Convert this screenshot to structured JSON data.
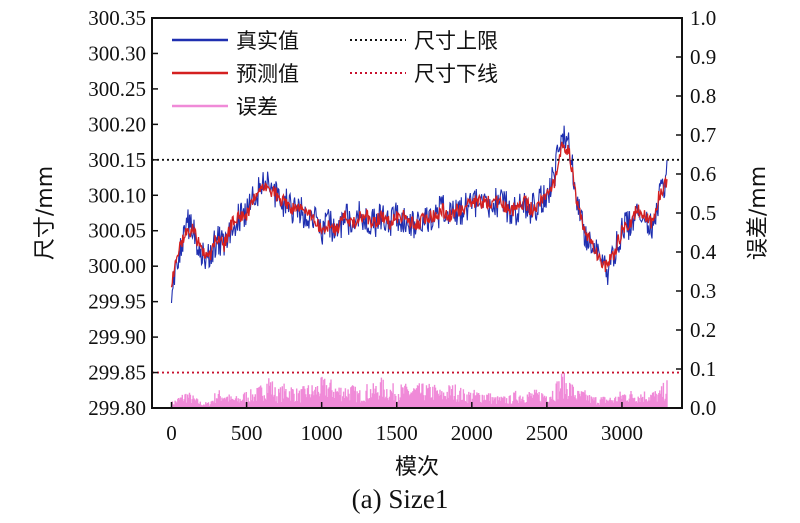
{
  "chart_data": {
    "type": "line",
    "caption": "(a) Size1",
    "xlabel": "模次",
    "ylabel_left": "尺寸/mm",
    "ylabel_right": "误差/mm",
    "xlim": [
      -130,
      3400
    ],
    "ylim_left": [
      299.8,
      300.35
    ],
    "ylim_right": [
      0.0,
      1.0
    ],
    "x_ticks": [
      "0",
      "500",
      "1000",
      "1500",
      "2000",
      "2500",
      "3000"
    ],
    "y_left_ticks": [
      "299.80",
      "299.85",
      "299.90",
      "299.95",
      "300.00",
      "300.05",
      "300.10",
      "300.15",
      "300.20",
      "300.25",
      "300.30",
      "300.35"
    ],
    "y_right_ticks": [
      "0.0",
      "0.1",
      "0.2",
      "0.3",
      "0.4",
      "0.5",
      "0.6",
      "0.7",
      "0.8",
      "0.9",
      "1.0"
    ],
    "legend_position": "top-left",
    "x": [
      0,
      50,
      100,
      150,
      200,
      250,
      300,
      350,
      400,
      450,
      500,
      550,
      600,
      650,
      700,
      750,
      800,
      850,
      900,
      950,
      1000,
      1050,
      1100,
      1150,
      1200,
      1250,
      1300,
      1350,
      1400,
      1450,
      1500,
      1550,
      1600,
      1650,
      1700,
      1750,
      1800,
      1850,
      1900,
      1950,
      2000,
      2050,
      2100,
      2150,
      2200,
      2250,
      2300,
      2350,
      2400,
      2450,
      2500,
      2550,
      2600,
      2650,
      2700,
      2750,
      2800,
      2850,
      2900,
      2950,
      3000,
      3050,
      3100,
      3150,
      3200,
      3250,
      3300
    ],
    "series": [
      {
        "name": "真实值",
        "axis": "left",
        "color": "#1f2fb0",
        "values": [
          299.97,
          300.02,
          300.06,
          300.05,
          300.02,
          300.01,
          300.04,
          300.03,
          300.06,
          300.07,
          300.07,
          300.1,
          300.11,
          300.12,
          300.1,
          300.09,
          300.08,
          300.08,
          300.07,
          300.07,
          300.05,
          300.06,
          300.05,
          300.07,
          300.06,
          300.07,
          300.07,
          300.06,
          300.07,
          300.06,
          300.07,
          300.07,
          300.06,
          300.06,
          300.07,
          300.07,
          300.08,
          300.07,
          300.08,
          300.08,
          300.09,
          300.09,
          300.09,
          300.09,
          300.09,
          300.08,
          300.08,
          300.09,
          300.08,
          300.09,
          300.1,
          300.13,
          300.18,
          300.17,
          300.09,
          300.05,
          300.03,
          300.01,
          299.99,
          300.02,
          300.05,
          300.06,
          300.08,
          300.07,
          300.06,
          300.1,
          300.13
        ]
      },
      {
        "name": "预测值",
        "axis": "left",
        "color": "#d42020",
        "values": [
          299.98,
          300.02,
          300.05,
          300.05,
          300.02,
          300.01,
          300.04,
          300.03,
          300.06,
          300.07,
          300.07,
          300.1,
          300.11,
          300.11,
          300.1,
          300.09,
          300.08,
          300.08,
          300.07,
          300.07,
          300.05,
          300.06,
          300.05,
          300.07,
          300.06,
          300.07,
          300.07,
          300.06,
          300.07,
          300.06,
          300.07,
          300.07,
          300.06,
          300.06,
          300.07,
          300.07,
          300.08,
          300.07,
          300.08,
          300.08,
          300.09,
          300.09,
          300.09,
          300.09,
          300.09,
          300.08,
          300.08,
          300.09,
          300.08,
          300.09,
          300.1,
          300.12,
          300.17,
          300.16,
          300.09,
          300.05,
          300.03,
          300.01,
          300.0,
          300.02,
          300.05,
          300.06,
          300.08,
          300.07,
          300.06,
          300.1,
          300.12
        ]
      },
      {
        "name": "误差",
        "axis": "right",
        "color": "#f08ad8",
        "values": [
          0.01,
          0.02,
          0.03,
          0.02,
          0.01,
          0.01,
          0.03,
          0.03,
          0.02,
          0.02,
          0.03,
          0.03,
          0.04,
          0.06,
          0.03,
          0.04,
          0.04,
          0.03,
          0.04,
          0.04,
          0.05,
          0.05,
          0.04,
          0.04,
          0.04,
          0.03,
          0.04,
          0.04,
          0.05,
          0.04,
          0.04,
          0.04,
          0.04,
          0.04,
          0.04,
          0.04,
          0.03,
          0.04,
          0.04,
          0.03,
          0.03,
          0.03,
          0.03,
          0.02,
          0.02,
          0.02,
          0.03,
          0.03,
          0.03,
          0.03,
          0.03,
          0.04,
          0.06,
          0.05,
          0.03,
          0.03,
          0.02,
          0.02,
          0.02,
          0.02,
          0.03,
          0.03,
          0.03,
          0.03,
          0.03,
          0.03,
          0.05
        ]
      },
      {
        "name": "尺寸上限",
        "axis": "left",
        "color": "#111111",
        "style": "dotted",
        "constant": 300.15
      },
      {
        "name": "尺寸下线",
        "axis": "left",
        "color": "#c8102e",
        "style": "dotted",
        "constant": 299.85
      }
    ]
  }
}
